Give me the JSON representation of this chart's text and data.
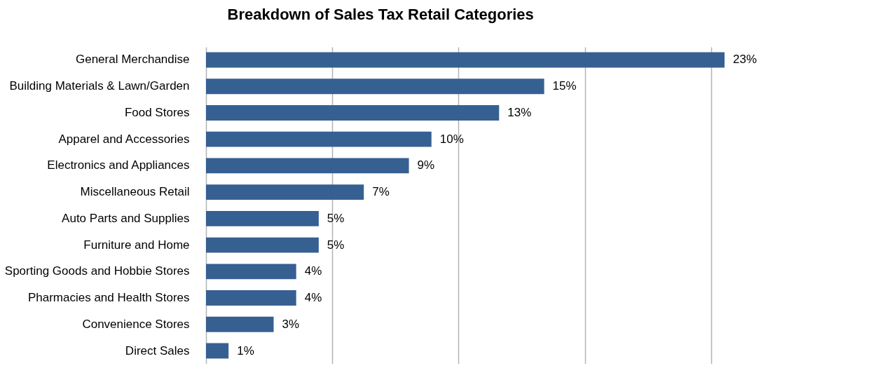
{
  "chart_data": {
    "type": "bar",
    "orientation": "horizontal",
    "title": "Breakdown of Sales Tax Retail Categories",
    "categories": [
      "General Merchandise",
      "Building Materials & Lawn/Garden",
      "Food Stores",
      "Apparel and Accessories",
      "Electronics and Appliances",
      "Miscellaneous Retail",
      "Auto Parts and Supplies",
      "Furniture and Home",
      "Sporting Goods and Hobbie Stores",
      "Pharmacies and Health Stores",
      "Convenience Stores",
      "Direct Sales"
    ],
    "values": [
      23,
      15,
      13,
      10,
      9,
      7,
      5,
      5,
      4,
      4,
      3,
      1
    ],
    "value_labels": [
      "23%",
      "15%",
      "13%",
      "10%",
      "9%",
      "7%",
      "5%",
      "5%",
      "4%",
      "4%",
      "3%",
      "1%"
    ],
    "color": "#366092",
    "xticks": [
      {
        "value": 0,
        "label": null
      },
      {
        "value": 5.6,
        "label": null
      },
      {
        "value": 11.2,
        "label": null
      },
      {
        "value": 16.8,
        "label": null
      },
      {
        "value": 22.4,
        "label": null
      }
    ],
    "grid": "x",
    "tick_labels": "y"
  }
}
